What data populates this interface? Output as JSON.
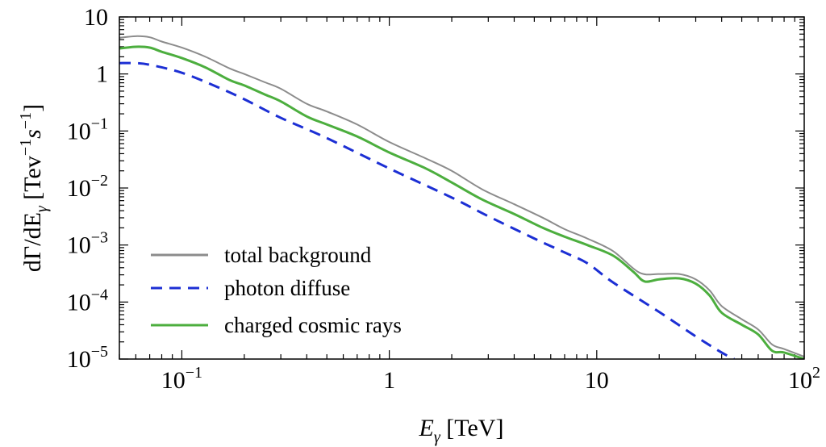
{
  "chart_data": {
    "type": "line",
    "x_scale": "log",
    "y_scale": "log",
    "xlim": [
      0.05,
      100
    ],
    "ylim": [
      1e-05,
      10
    ],
    "xlabel": "Eγ [TeV]",
    "ylabel": "dΓ/dEγ [Tev⁻¹s⁻¹]",
    "x_ticks": [
      {
        "value": 0.1,
        "base": "10",
        "exp": "−1"
      },
      {
        "value": 1,
        "base": "1",
        "exp": ""
      },
      {
        "value": 10,
        "base": "10",
        "exp": ""
      },
      {
        "value": 100,
        "base": "10",
        "exp": "2"
      }
    ],
    "y_ticks": [
      {
        "value": 10,
        "base": "10",
        "exp": ""
      },
      {
        "value": 1,
        "base": "1",
        "exp": ""
      },
      {
        "value": 0.1,
        "base": "10",
        "exp": "−1"
      },
      {
        "value": 0.01,
        "base": "10",
        "exp": "−2"
      },
      {
        "value": 0.001,
        "base": "10",
        "exp": "−3"
      },
      {
        "value": 0.0001,
        "base": "10",
        "exp": "−4"
      },
      {
        "value": 1e-05,
        "base": "10",
        "exp": "−5"
      }
    ],
    "legend_position": "bottom-left",
    "series": [
      {
        "name": "total background",
        "color": "#8c8c8c",
        "style": "solid",
        "points": [
          [
            0.05,
            4.3
          ],
          [
            0.06,
            4.6
          ],
          [
            0.07,
            4.4
          ],
          [
            0.08,
            3.7
          ],
          [
            0.1,
            2.9
          ],
          [
            0.13,
            2.0
          ],
          [
            0.17,
            1.25
          ],
          [
            0.2,
            1.0
          ],
          [
            0.25,
            0.72
          ],
          [
            0.3,
            0.55
          ],
          [
            0.4,
            0.3
          ],
          [
            0.5,
            0.22
          ],
          [
            0.7,
            0.13
          ],
          [
            1.0,
            0.064
          ],
          [
            1.5,
            0.033
          ],
          [
            2.0,
            0.02
          ],
          [
            2.8,
            0.0095
          ],
          [
            4.0,
            0.0052
          ],
          [
            5.5,
            0.003
          ],
          [
            7.0,
            0.0019
          ],
          [
            9.0,
            0.0013
          ],
          [
            12,
            0.00078
          ],
          [
            16,
            0.00033
          ],
          [
            20,
            0.00031
          ],
          [
            25,
            0.00031
          ],
          [
            30,
            0.00025
          ],
          [
            35,
            0.00016
          ],
          [
            40,
            8.5e-05
          ],
          [
            50,
            5e-05
          ],
          [
            60,
            3.3e-05
          ],
          [
            70,
            1.8e-05
          ],
          [
            80,
            1.5e-05
          ],
          [
            100,
            1.1e-05
          ]
        ]
      },
      {
        "name": "photon diffuse",
        "color": "#1c2fd4",
        "style": "dashed",
        "points": [
          [
            0.05,
            1.55
          ],
          [
            0.06,
            1.55
          ],
          [
            0.07,
            1.45
          ],
          [
            0.1,
            1.05
          ],
          [
            0.15,
            0.58
          ],
          [
            0.2,
            0.36
          ],
          [
            0.3,
            0.17
          ],
          [
            0.5,
            0.075
          ],
          [
            1.0,
            0.022
          ],
          [
            2.0,
            0.0068
          ],
          [
            3.0,
            0.0032
          ],
          [
            5.0,
            0.0013
          ],
          [
            7.0,
            0.00074
          ],
          [
            9.0,
            0.00048
          ],
          [
            12,
            0.00022
          ],
          [
            20,
            6.7e-05
          ],
          [
            30,
            2.5e-05
          ],
          [
            40,
            1.3e-05
          ],
          [
            46,
            1e-05
          ]
        ]
      },
      {
        "name": "charged cosmic rays",
        "color": "#4cae3e",
        "style": "solid",
        "points": [
          [
            0.05,
            2.8
          ],
          [
            0.06,
            3.0
          ],
          [
            0.07,
            2.9
          ],
          [
            0.08,
            2.45
          ],
          [
            0.1,
            1.9
          ],
          [
            0.13,
            1.3
          ],
          [
            0.17,
            0.78
          ],
          [
            0.2,
            0.63
          ],
          [
            0.25,
            0.44
          ],
          [
            0.3,
            0.33
          ],
          [
            0.4,
            0.18
          ],
          [
            0.5,
            0.13
          ],
          [
            0.7,
            0.08
          ],
          [
            1.0,
            0.042
          ],
          [
            1.5,
            0.022
          ],
          [
            2.0,
            0.0125
          ],
          [
            2.8,
            0.0063
          ],
          [
            4.0,
            0.0035
          ],
          [
            5.5,
            0.002
          ],
          [
            7.0,
            0.0014
          ],
          [
            9.0,
            0.001
          ],
          [
            12,
            0.00065
          ],
          [
            15,
            0.00034
          ],
          [
            17,
            0.00023
          ],
          [
            20,
            0.00025
          ],
          [
            25,
            0.00026
          ],
          [
            30,
            0.00021
          ],
          [
            35,
            0.00013
          ],
          [
            40,
            6.5e-05
          ],
          [
            50,
            4e-05
          ],
          [
            60,
            2.7e-05
          ],
          [
            70,
            1.4e-05
          ],
          [
            80,
            1.3e-05
          ],
          [
            100,
            1e-05
          ]
        ]
      }
    ]
  }
}
